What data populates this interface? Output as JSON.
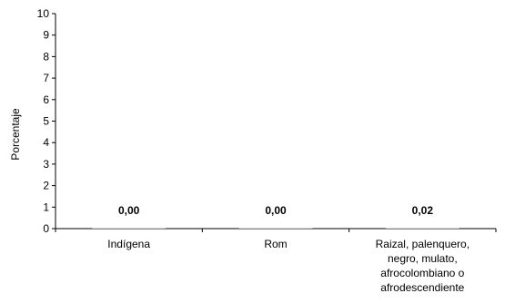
{
  "chart_data": {
    "type": "bar",
    "title": "",
    "xlabel": "",
    "ylabel": "Porcentaje",
    "ylim": [
      0,
      10
    ],
    "yticks": [
      0,
      1,
      2,
      3,
      4,
      5,
      6,
      7,
      8,
      9,
      10
    ],
    "grid": false,
    "categories": [
      [
        "Indígena"
      ],
      [
        "Rom"
      ],
      [
        "Raizal, palenquero,",
        "negro, mulato,",
        "afrocolombiano o",
        "afrodescendiente"
      ]
    ],
    "values": [
      0.0,
      0.0,
      0.02
    ],
    "data_labels": [
      "0,00",
      "0,00",
      "0,02"
    ],
    "bar_color": "#9999ff"
  }
}
